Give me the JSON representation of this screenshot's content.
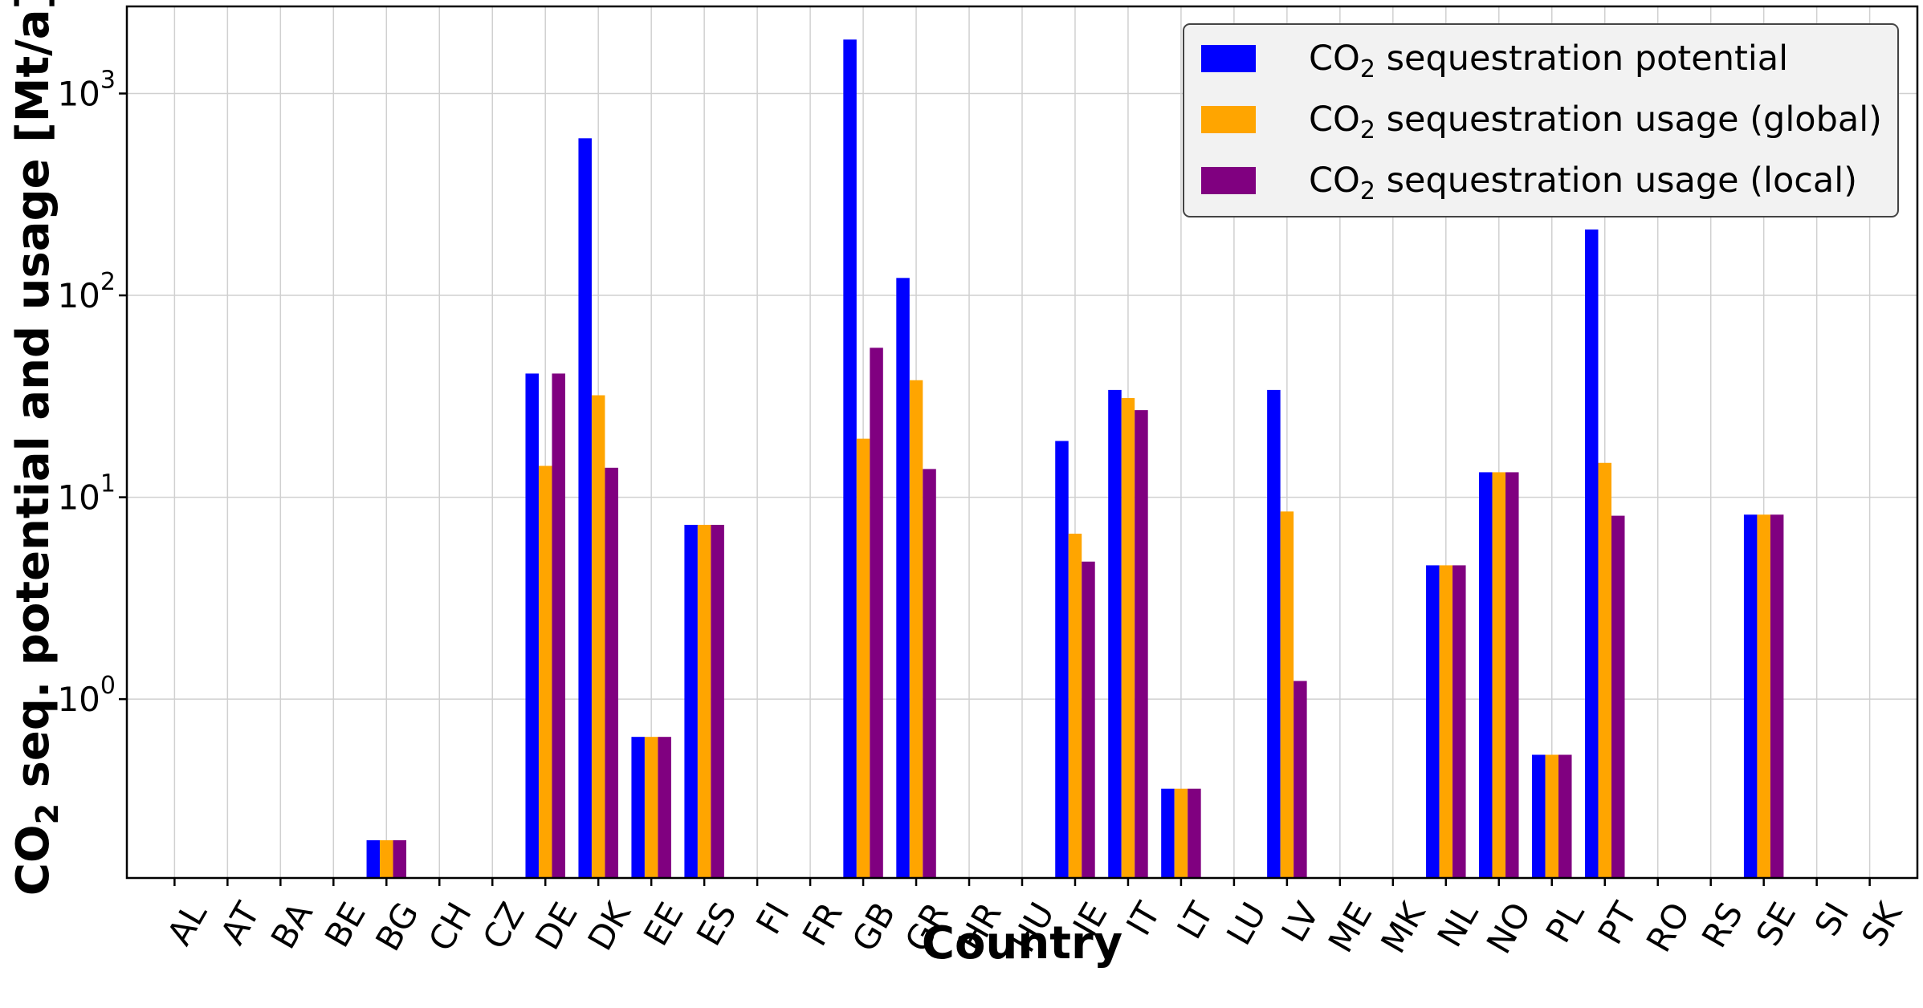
{
  "chart_data": {
    "type": "bar",
    "yscale": "log",
    "ylim": [
      0.13,
      2700
    ],
    "xlabel": "Country",
    "ylabel": {
      "prefix": "CO",
      "sub": "2",
      "suffix": " seq. potential and usage [Mt/a]"
    },
    "grid": true,
    "legend_position": "top-right",
    "y_ticks": [
      {
        "value": 1,
        "base": "10",
        "exp": "0"
      },
      {
        "value": 10,
        "base": "10",
        "exp": "1"
      },
      {
        "value": 100,
        "base": "10",
        "exp": "2"
      },
      {
        "value": 1000,
        "base": "10",
        "exp": "3"
      }
    ],
    "categories": [
      "AL",
      "AT",
      "BA",
      "BE",
      "BG",
      "CH",
      "CZ",
      "DE",
      "DK",
      "EE",
      "ES",
      "FI",
      "FR",
      "GB",
      "GR",
      "HR",
      "HU",
      "IE",
      "IT",
      "LT",
      "LU",
      "LV",
      "ME",
      "MK",
      "NL",
      "NO",
      "PL",
      "PT",
      "RO",
      "RS",
      "SE",
      "SI",
      "SK"
    ],
    "series": [
      {
        "name": "CO2 sequestration potential",
        "legend": {
          "prefix": "CO",
          "sub": "2",
          "suffix": " sequestration potential"
        },
        "color": "#0000ff",
        "values": [
          0,
          0,
          0,
          0,
          0.2,
          0,
          0,
          41,
          600,
          0.65,
          7.3,
          0,
          0,
          1850,
          122,
          0,
          0,
          19,
          34,
          0.36,
          0,
          34,
          0,
          0,
          4.6,
          13.3,
          0.53,
          212,
          0,
          0,
          8.2,
          0,
          0
        ]
      },
      {
        "name": "CO2 sequestration usage (global)",
        "legend": {
          "prefix": "CO",
          "sub": "2",
          "suffix": " sequestration usage (global)"
        },
        "color": "#ffa500",
        "values": [
          0,
          0,
          0,
          0,
          0.2,
          0,
          0,
          14.3,
          32,
          0.65,
          7.3,
          0,
          0,
          19.5,
          38,
          0,
          0,
          6.6,
          31,
          0.36,
          0,
          8.5,
          0,
          0,
          4.6,
          13.3,
          0.53,
          14.8,
          0,
          0,
          8.2,
          0,
          0
        ]
      },
      {
        "name": "CO2 sequestration usage (local)",
        "legend": {
          "prefix": "CO",
          "sub": "2",
          "suffix": " sequestration usage (local)"
        },
        "color": "#800080",
        "values": [
          0,
          0,
          0,
          0,
          0.2,
          0,
          0,
          41,
          14,
          0.65,
          7.3,
          0,
          0,
          55,
          13.8,
          0,
          0,
          4.8,
          27,
          0.36,
          0,
          1.23,
          0,
          0,
          4.6,
          13.3,
          0.53,
          8.1,
          0,
          0,
          8.2,
          0,
          0
        ]
      }
    ]
  }
}
